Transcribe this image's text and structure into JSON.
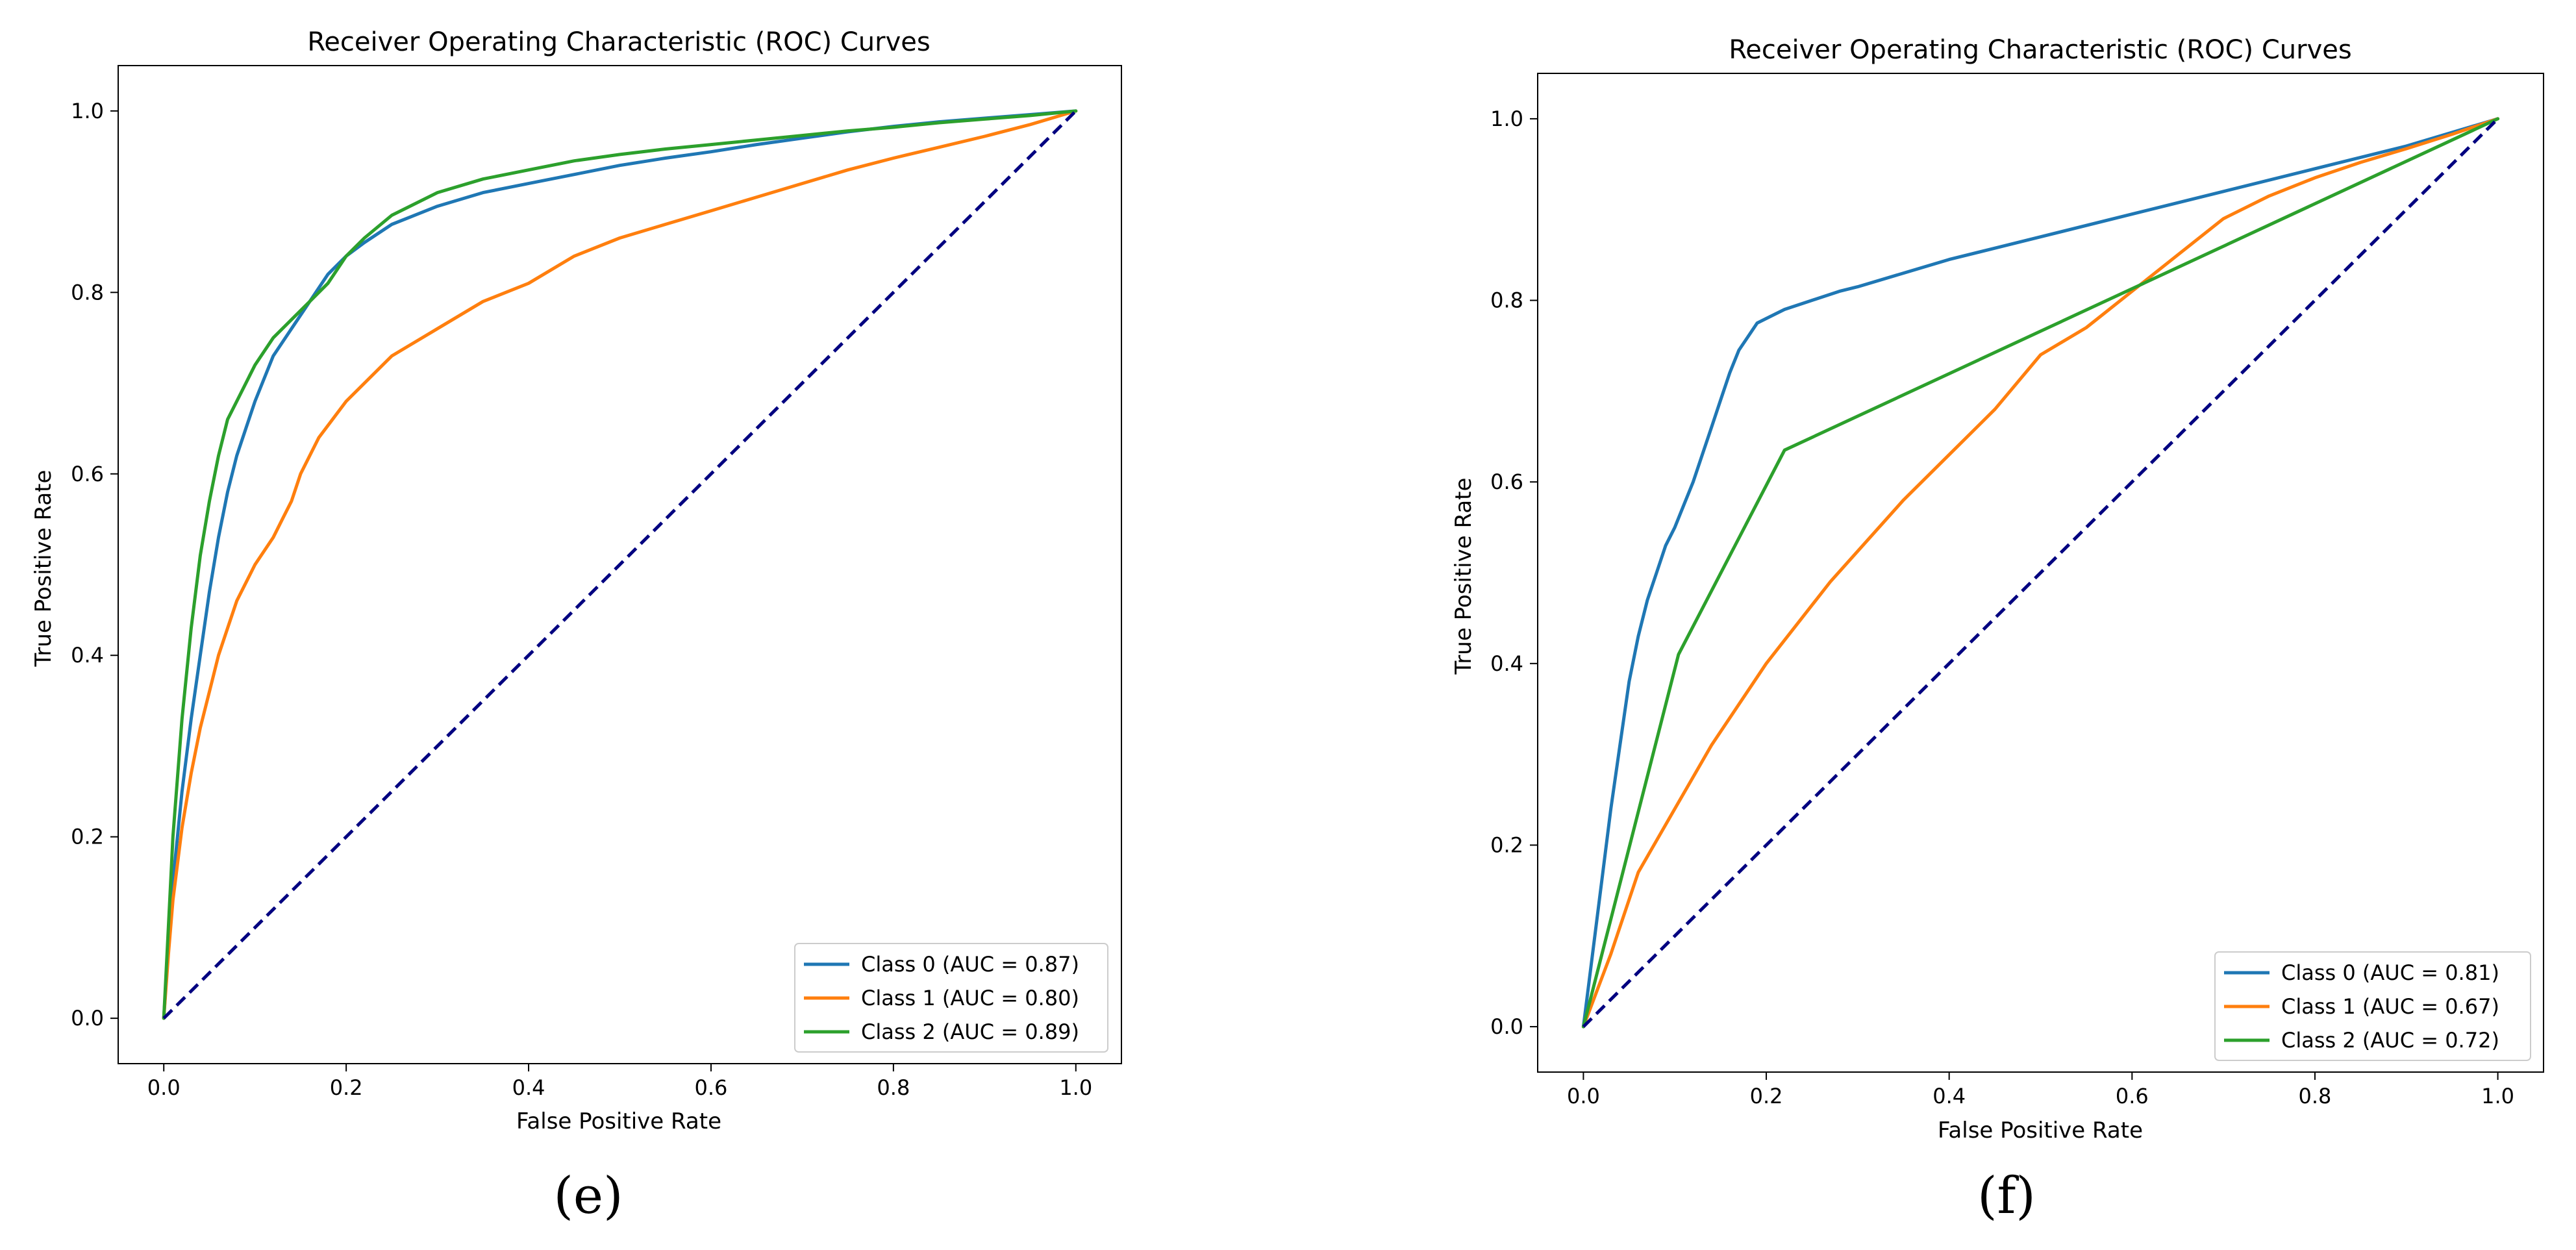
{
  "chart_data": [
    {
      "type": "line",
      "panel_label": "(e)",
      "title": "Receiver Operating Characteristic (ROC) Curves",
      "xlabel": "False Positive Rate",
      "ylabel": "True Positive Rate",
      "xlim": [
        -0.05,
        1.05
      ],
      "ylim": [
        -0.05,
        1.05
      ],
      "xticks": [
        0.0,
        0.2,
        0.4,
        0.6,
        0.8,
        1.0
      ],
      "yticks": [
        0.0,
        0.2,
        0.4,
        0.6,
        0.8,
        1.0
      ],
      "xtick_labels": [
        "0.0",
        "0.2",
        "0.4",
        "0.6",
        "0.8",
        "1.0"
      ],
      "ytick_labels": [
        "0.0",
        "0.2",
        "0.4",
        "0.6",
        "0.8",
        "1.0"
      ],
      "grid": false,
      "legend_position": "lower-right",
      "series": [
        {
          "name": "Class 0 (AUC = 0.87)",
          "color": "#1f77b4",
          "x": [
            0,
            0.005,
            0.01,
            0.02,
            0.03,
            0.04,
            0.05,
            0.06,
            0.07,
            0.08,
            0.09,
            0.1,
            0.12,
            0.14,
            0.16,
            0.18,
            0.2,
            0.22,
            0.25,
            0.3,
            0.35,
            0.4,
            0.45,
            0.5,
            0.55,
            0.6,
            0.65,
            0.7,
            0.75,
            0.8,
            0.85,
            0.9,
            0.95,
            1.0
          ],
          "y": [
            0,
            0.08,
            0.15,
            0.25,
            0.33,
            0.4,
            0.47,
            0.53,
            0.58,
            0.62,
            0.65,
            0.68,
            0.73,
            0.76,
            0.79,
            0.82,
            0.84,
            0.855,
            0.875,
            0.895,
            0.91,
            0.92,
            0.93,
            0.94,
            0.948,
            0.955,
            0.963,
            0.97,
            0.977,
            0.983,
            0.988,
            0.992,
            0.996,
            1.0
          ]
        },
        {
          "name": "Class 1 (AUC = 0.80)",
          "color": "#ff7f0e",
          "x": [
            0,
            0.005,
            0.01,
            0.02,
            0.03,
            0.04,
            0.05,
            0.06,
            0.07,
            0.08,
            0.1,
            0.12,
            0.13,
            0.14,
            0.15,
            0.17,
            0.2,
            0.25,
            0.3,
            0.35,
            0.4,
            0.45,
            0.5,
            0.55,
            0.6,
            0.65,
            0.7,
            0.75,
            0.8,
            0.85,
            0.9,
            0.95,
            1.0
          ],
          "y": [
            0,
            0.07,
            0.13,
            0.21,
            0.27,
            0.32,
            0.36,
            0.4,
            0.43,
            0.46,
            0.5,
            0.53,
            0.55,
            0.57,
            0.6,
            0.64,
            0.68,
            0.73,
            0.76,
            0.79,
            0.81,
            0.84,
            0.86,
            0.875,
            0.89,
            0.905,
            0.92,
            0.935,
            0.948,
            0.96,
            0.972,
            0.985,
            1.0
          ]
        },
        {
          "name": "Class 2 (AUC = 0.89)",
          "color": "#2ca02c",
          "x": [
            0,
            0.005,
            0.01,
            0.02,
            0.03,
            0.04,
            0.05,
            0.06,
            0.07,
            0.08,
            0.1,
            0.12,
            0.14,
            0.16,
            0.18,
            0.2,
            0.22,
            0.25,
            0.3,
            0.35,
            0.4,
            0.45,
            0.5,
            0.55,
            0.6,
            0.65,
            0.7,
            0.75,
            0.8,
            0.85,
            0.9,
            0.95,
            1.0
          ],
          "y": [
            0,
            0.1,
            0.2,
            0.33,
            0.43,
            0.51,
            0.57,
            0.62,
            0.66,
            0.68,
            0.72,
            0.75,
            0.77,
            0.79,
            0.81,
            0.84,
            0.86,
            0.885,
            0.91,
            0.925,
            0.935,
            0.945,
            0.952,
            0.958,
            0.963,
            0.968,
            0.973,
            0.978,
            0.982,
            0.987,
            0.991,
            0.995,
            1.0
          ]
        }
      ],
      "baseline": {
        "x": [
          0,
          1
        ],
        "y": [
          0,
          1
        ],
        "color": "#000080",
        "style": "dashed"
      }
    },
    {
      "type": "line",
      "panel_label": "(f)",
      "title": "Receiver Operating Characteristic (ROC) Curves",
      "xlabel": "False Positive Rate",
      "ylabel": "True Positive Rate",
      "xlim": [
        -0.05,
        1.05
      ],
      "ylim": [
        -0.05,
        1.05
      ],
      "xticks": [
        0.0,
        0.2,
        0.4,
        0.6,
        0.8,
        1.0
      ],
      "yticks": [
        0.0,
        0.2,
        0.4,
        0.6,
        0.8,
        1.0
      ],
      "xtick_labels": [
        "0.0",
        "0.2",
        "0.4",
        "0.6",
        "0.8",
        "1.0"
      ],
      "ytick_labels": [
        "0.0",
        "0.2",
        "0.4",
        "0.6",
        "0.8",
        "1.0"
      ],
      "grid": false,
      "legend_position": "lower-right",
      "series": [
        {
          "name": "Class 0 (AUC = 0.81)",
          "color": "#1f77b4",
          "x": [
            0,
            0.01,
            0.02,
            0.03,
            0.04,
            0.05,
            0.06,
            0.07,
            0.08,
            0.09,
            0.1,
            0.11,
            0.12,
            0.13,
            0.14,
            0.15,
            0.16,
            0.17,
            0.18,
            0.19,
            0.2,
            0.21,
            0.22,
            0.25,
            0.28,
            0.3,
            0.35,
            0.4,
            0.5,
            0.6,
            0.7,
            0.8,
            0.9,
            1.0
          ],
          "y": [
            0,
            0.08,
            0.16,
            0.24,
            0.31,
            0.38,
            0.43,
            0.47,
            0.5,
            0.53,
            0.55,
            0.575,
            0.6,
            0.63,
            0.66,
            0.69,
            0.72,
            0.745,
            0.76,
            0.775,
            0.78,
            0.785,
            0.79,
            0.8,
            0.81,
            0.815,
            0.83,
            0.845,
            0.87,
            0.895,
            0.92,
            0.945,
            0.97,
            1.0
          ]
        },
        {
          "name": "Class 1 (AUC = 0.67)",
          "color": "#ff7f0e",
          "x": [
            0,
            0.03,
            0.06,
            0.1,
            0.14,
            0.2,
            0.27,
            0.35,
            0.4,
            0.45,
            0.5,
            0.55,
            0.6,
            0.65,
            0.7,
            0.75,
            0.8,
            0.85,
            0.9,
            0.95,
            1.0
          ],
          "y": [
            0,
            0.08,
            0.17,
            0.24,
            0.31,
            0.4,
            0.49,
            0.58,
            0.63,
            0.68,
            0.74,
            0.77,
            0.81,
            0.85,
            0.89,
            0.915,
            0.935,
            0.952,
            0.967,
            0.983,
            1.0
          ]
        },
        {
          "name": "Class 2 (AUC = 0.72)",
          "color": "#2ca02c",
          "x": [
            0,
            0.104,
            0.22,
            1.0
          ],
          "y": [
            0,
            0.41,
            0.635,
            1.0
          ]
        }
      ],
      "baseline": {
        "x": [
          0,
          1
        ],
        "y": [
          0,
          1
        ],
        "color": "#000080",
        "style": "dashed"
      }
    }
  ]
}
